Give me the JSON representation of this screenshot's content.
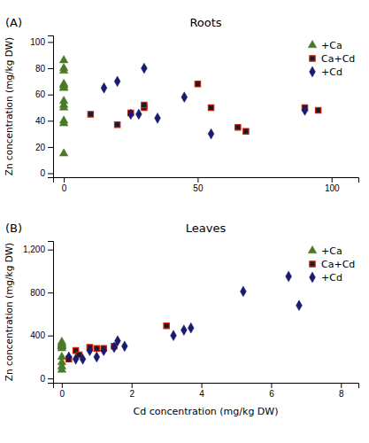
{
  "chart_data": [
    {
      "type": "scatter",
      "title": "Roots",
      "annotation": "(A)",
      "ylabel": "Zn concentration (mg/kg DW)",
      "xlim": [
        -4,
        110
      ],
      "ylim": [
        -3,
        105
      ],
      "xticks": [
        0,
        50,
        100
      ],
      "yticks": [
        0,
        20,
        40,
        60,
        80,
        100
      ],
      "legend": "upper right",
      "series": [
        {
          "name": "+Ca",
          "color": "#4a7a28",
          "marker": "triangle",
          "x": [
            0,
            0,
            0,
            0,
            0,
            0,
            0,
            0,
            0,
            0,
            0,
            0,
            0
          ],
          "values": [
            86,
            80,
            78,
            68,
            67,
            65,
            65,
            55,
            52,
            50,
            40,
            38,
            15
          ]
        },
        {
          "name": "Ca+Cd",
          "color": "#1a1a2e",
          "marker": "square",
          "x": [
            10,
            20,
            25,
            30,
            30,
            50,
            55,
            65,
            68,
            90,
            95
          ],
          "values": [
            45,
            37,
            46,
            50,
            52,
            68,
            50,
            35,
            32,
            50,
            48
          ]
        },
        {
          "name": "+Cd",
          "color": "#1a1a6e",
          "marker": "diamond",
          "x": [
            15,
            20,
            25,
            28,
            30,
            35,
            45,
            55,
            90
          ],
          "values": [
            65,
            70,
            45,
            45,
            80,
            42,
            58,
            30,
            48
          ]
        }
      ]
    },
    {
      "type": "scatter",
      "title": "Leaves",
      "annotation": "(B)",
      "xlabel": "Cd concentration (mg/kg DW)",
      "ylabel": "Zn concentration (mg/kg DW)",
      "xlim": [
        -0.25,
        8.5
      ],
      "ylim": [
        -40,
        1280
      ],
      "xticks": [
        0,
        2,
        4,
        6,
        8
      ],
      "yticks": [
        0,
        400,
        800,
        {
          "value": 1200,
          "label": "1,200"
        }
      ],
      "legend": "upper right",
      "series": [
        {
          "name": "+Ca",
          "color": "#4a7a28",
          "marker": "triangle",
          "x": [
            0,
            0,
            0,
            0,
            0,
            0,
            0,
            0,
            0,
            0,
            0
          ],
          "values": [
            280,
            320,
            300,
            340,
            300,
            110,
            80,
            150,
            200,
            320,
            300
          ]
        },
        {
          "name": "Ca+Cd",
          "color": "#1a1a2e",
          "marker": "square",
          "x": [
            0.2,
            0.4,
            0.5,
            0.8,
            1.0,
            1.2,
            1.5,
            3.0
          ],
          "values": [
            180,
            260,
            220,
            290,
            280,
            280,
            300,
            490
          ]
        },
        {
          "name": "+Cd",
          "color": "#1a1a6e",
          "marker": "diamond",
          "x": [
            0.2,
            0.4,
            0.6,
            0.8,
            1.0,
            1.2,
            1.5,
            1.6,
            1.8,
            3.2,
            3.5,
            3.7,
            5.2,
            6.5,
            6.8
          ],
          "values": [
            200,
            180,
            180,
            260,
            200,
            260,
            290,
            350,
            300,
            400,
            450,
            470,
            810,
            950,
            680
          ]
        }
      ]
    }
  ]
}
